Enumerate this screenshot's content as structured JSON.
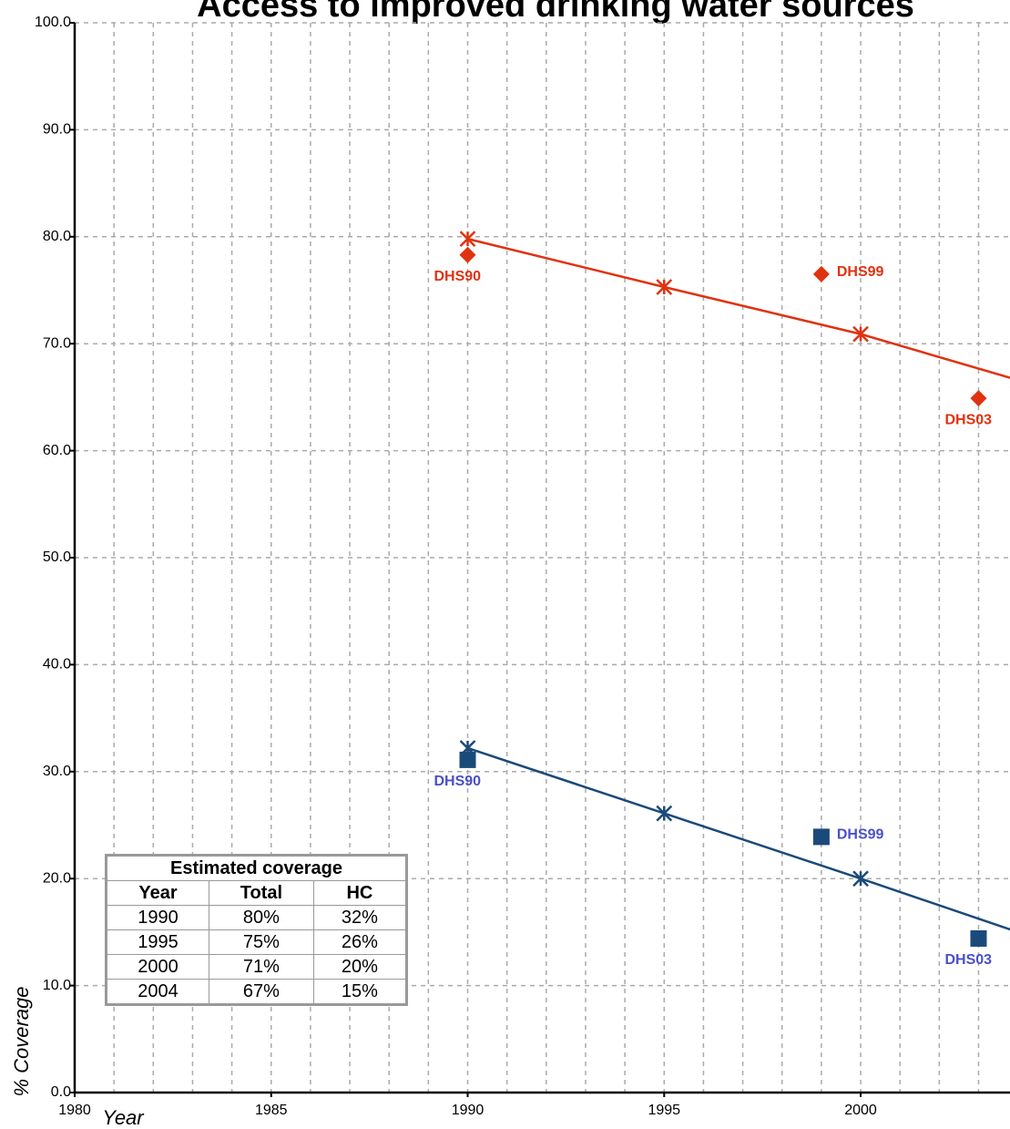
{
  "chart_data": {
    "type": "line",
    "title": "Access to improved drinking water sources",
    "xlabel": "Year",
    "ylabel": "% Coverage",
    "xlim": [
      1980,
      2003.8
    ],
    "ylim": [
      0,
      100
    ],
    "xticks": [
      1980,
      1985,
      1990,
      1995,
      2000
    ],
    "yticks": [
      {
        "value": 0,
        "label": "0.0"
      },
      {
        "value": 10,
        "label": "10.0"
      },
      {
        "value": 20,
        "label": "20.0"
      },
      {
        "value": 30,
        "label": "30.0"
      },
      {
        "value": 40,
        "label": "40.0"
      },
      {
        "value": 50,
        "label": "50.0"
      },
      {
        "value": 60,
        "label": "60.0"
      },
      {
        "value": 70,
        "label": "70.0"
      },
      {
        "value": 80,
        "label": "80.0"
      },
      {
        "value": 90,
        "label": "90.0"
      },
      {
        "value": 100,
        "label": "100.0"
      }
    ],
    "grid": true,
    "series": [
      {
        "color": "#e0320f",
        "marker": "asterisk",
        "x": [
          1990,
          1995,
          2000,
          2004
        ],
        "values": [
          79.8,
          75.3,
          70.9,
          66.6
        ]
      },
      {
        "color": "#1a4a7a",
        "marker": "asterisk",
        "x": [
          1990,
          1995,
          2000,
          2004
        ],
        "values": [
          32.2,
          26.1,
          20,
          15
        ]
      }
    ],
    "points": [
      {
        "color": "#e0320f",
        "label_color": "#e0320f",
        "marker": "diamond",
        "x": [
          1990,
          1999,
          2003
        ],
        "values": [
          78.3,
          76.5,
          64.9
        ],
        "labels": [
          "DHS90",
          "DHS99",
          "DHS03"
        ]
      },
      {
        "color": "#1a4a7a",
        "label_color": "#4a50c8",
        "marker": "square",
        "x": [
          1990,
          1999,
          2003
        ],
        "values": [
          31.1,
          23.9,
          14.4
        ],
        "labels": [
          "DHS90",
          "DHS99",
          "DHS03"
        ]
      }
    ]
  },
  "table": {
    "title": "Estimated coverage",
    "header": [
      "Year",
      "Total",
      "HC"
    ],
    "rows": [
      [
        "1990",
        "80%",
        "32%"
      ],
      [
        "1995",
        "75%",
        "26%"
      ],
      [
        "2000",
        "71%",
        "20%"
      ],
      [
        "2004",
        "67%",
        "15%"
      ]
    ]
  }
}
